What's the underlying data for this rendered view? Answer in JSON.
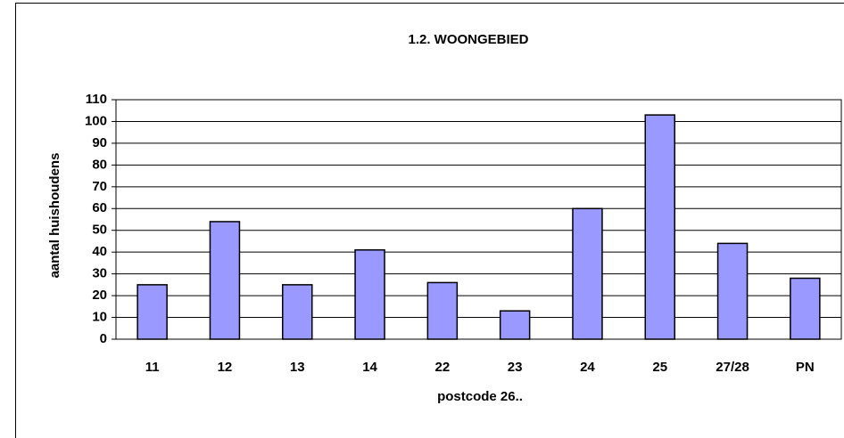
{
  "chart_data": {
    "type": "bar",
    "title": "1.2. WOONGEBIED",
    "x_label": "postcode 26..",
    "y_label": "aantal huishoudens",
    "categories": [
      "11",
      "12",
      "13",
      "14",
      "22",
      "23",
      "24",
      "25",
      "27/28",
      "PN"
    ],
    "values": [
      25,
      54,
      25,
      41,
      26,
      13,
      60,
      103,
      44,
      28
    ],
    "color": "#9999ff",
    "ylim": [
      0,
      110
    ],
    "yticks": [
      0,
      10,
      20,
      30,
      40,
      50,
      60,
      70,
      80,
      90,
      100,
      110
    ],
    "grid": true
  }
}
